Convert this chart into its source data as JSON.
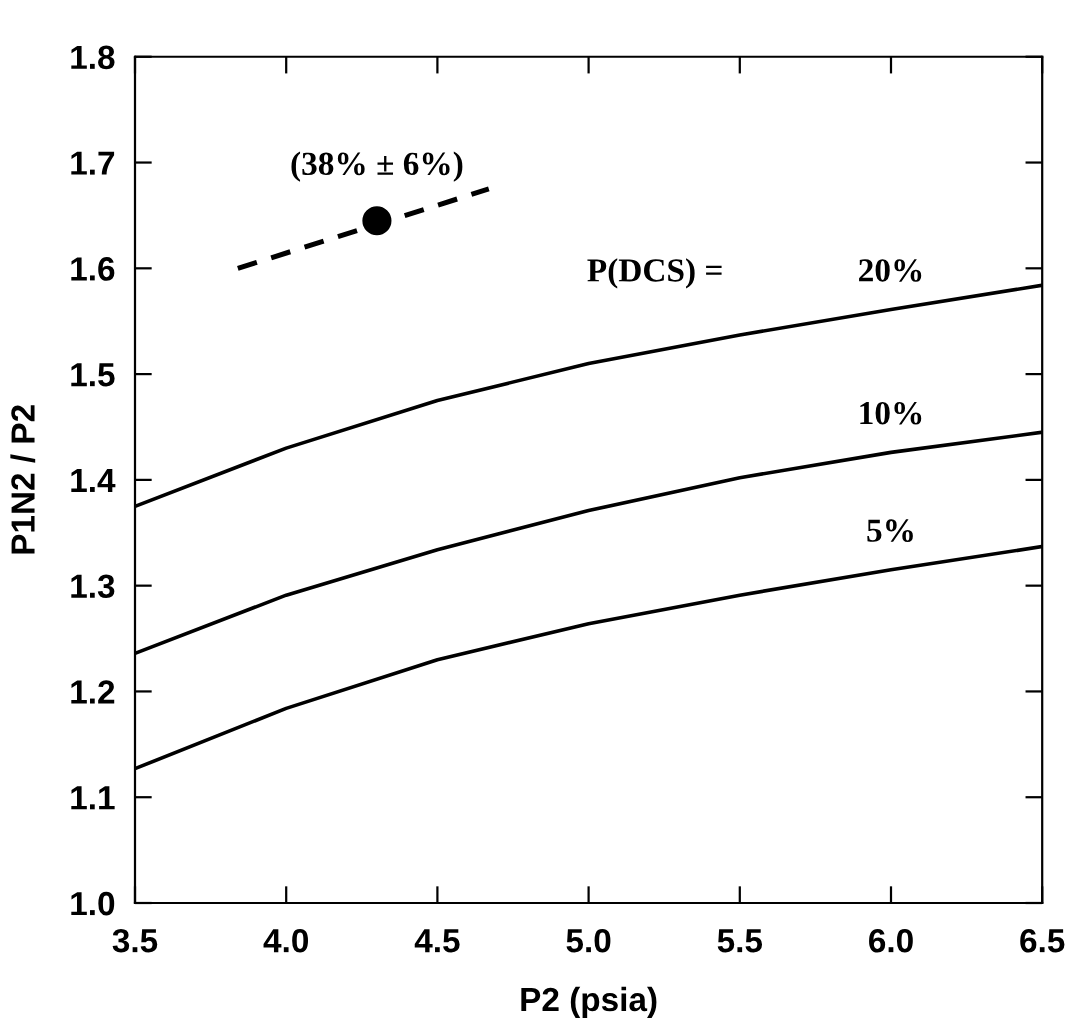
{
  "chart_data": {
    "type": "line",
    "xlabel": "P2 (psia)",
    "ylabel": "P1N2 / P2",
    "xlim": [
      3.5,
      6.5
    ],
    "ylim": [
      1.0,
      1.8
    ],
    "xticks": [
      {
        "value": 3.5,
        "label": "3.5"
      },
      {
        "value": 4.0,
        "label": "4.0"
      },
      {
        "value": 4.5,
        "label": "4.5"
      },
      {
        "value": 5.0,
        "label": "5.0"
      },
      {
        "value": 5.5,
        "label": "5.5"
      },
      {
        "value": 6.0,
        "label": "6.0"
      },
      {
        "value": 6.5,
        "label": "6.5"
      }
    ],
    "yticks": [
      {
        "value": 1.0,
        "label": "1.0"
      },
      {
        "value": 1.1,
        "label": "1.1"
      },
      {
        "value": 1.2,
        "label": "1.2"
      },
      {
        "value": 1.3,
        "label": "1.3"
      },
      {
        "value": 1.4,
        "label": "1.4"
      },
      {
        "value": 1.5,
        "label": "1.5"
      },
      {
        "value": 1.6,
        "label": "1.6"
      },
      {
        "value": 1.7,
        "label": "1.7"
      },
      {
        "value": 1.8,
        "label": "1.8"
      }
    ],
    "grid": false,
    "legend": false,
    "marker": "none",
    "line_style": "solid",
    "x": [
      3.5,
      4.0,
      4.5,
      5.0,
      5.5,
      6.0,
      6.5
    ],
    "series": [
      {
        "name": "20%",
        "color": "#000000",
        "values": [
          1.375,
          1.43,
          1.475,
          1.51,
          1.537,
          1.561,
          1.584
        ]
      },
      {
        "name": "10%",
        "color": "#000000",
        "values": [
          1.236,
          1.291,
          1.334,
          1.371,
          1.402,
          1.426,
          1.445
        ]
      },
      {
        "name": "5%",
        "color": "#000000",
        "values": [
          1.127,
          1.184,
          1.23,
          1.264,
          1.291,
          1.315,
          1.337
        ]
      },
      {
        "color": "#000000",
        "x": [
          3.84,
          4.67
        ],
        "values": [
          1.6,
          1.675
        ],
        "line_style": "dashed"
      },
      {
        "type": "scatter",
        "color": "#000000",
        "x": [
          4.3
        ],
        "values": [
          1.645
        ],
        "marker": "circle"
      }
    ],
    "annotations": [
      {
        "text": "(38% ± 6%)",
        "x": 4.3,
        "y": 1.645
      },
      "P(DCS) ="
    ]
  }
}
